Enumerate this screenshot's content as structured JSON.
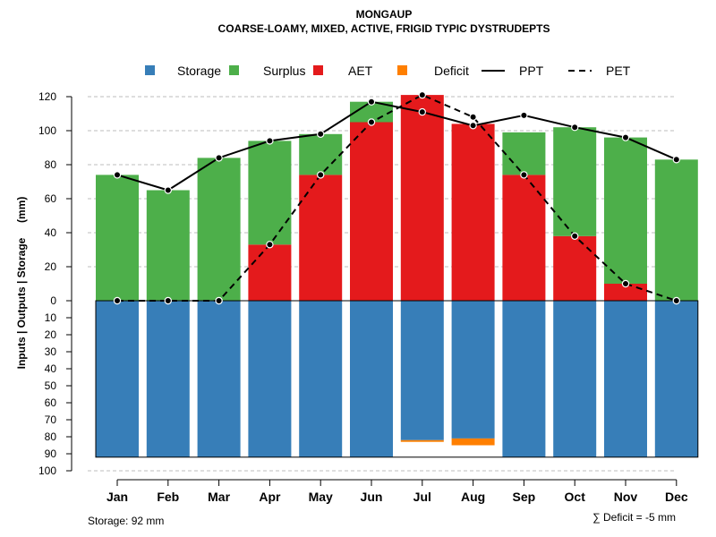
{
  "chart_data": {
    "type": "bar",
    "title": "MONGAUP",
    "subtitle": "COARSE-LOAMY, MIXED, ACTIVE, FRIGID TYPIC DYSTRUDEPTS",
    "ylabel": "Inputs | Outputs | Storage     (mm)",
    "categories": [
      "Jan",
      "Feb",
      "Mar",
      "Apr",
      "May",
      "Jun",
      "Jul",
      "Aug",
      "Sep",
      "Oct",
      "Nov",
      "Dec"
    ],
    "upper_ylim": [
      0,
      120
    ],
    "upper_ticks": [
      0,
      20,
      40,
      60,
      80,
      100,
      120
    ],
    "lower_ylim": [
      0,
      100
    ],
    "lower_ticks": [
      0,
      10,
      20,
      30,
      40,
      50,
      60,
      70,
      80,
      90,
      100
    ],
    "colors": {
      "Storage": "#377eb8",
      "Surplus": "#4daf4a",
      "AET": "#e41a1c",
      "Deficit": "#ff7f00",
      "grid": "#bdbdbd"
    },
    "legend": [
      {
        "name": "Storage",
        "style": "box"
      },
      {
        "name": "Surplus",
        "style": "box"
      },
      {
        "name": "AET",
        "style": "box"
      },
      {
        "name": "Deficit",
        "style": "box"
      },
      {
        "name": "PPT",
        "style": "solid-line"
      },
      {
        "name": "PET",
        "style": "dashed-line"
      }
    ],
    "series": [
      {
        "name": "AET",
        "values": [
          0,
          0,
          0,
          33,
          74,
          105,
          121,
          104,
          74,
          38,
          10,
          0
        ]
      },
      {
        "name": "Surplus",
        "values": [
          74,
          65,
          84,
          61,
          24,
          12,
          0,
          0,
          25,
          64,
          86,
          83
        ]
      },
      {
        "name": "Storage",
        "values": [
          92,
          92,
          92,
          92,
          92,
          92,
          82,
          81,
          92,
          92,
          92,
          92
        ]
      },
      {
        "name": "Deficit",
        "values": [
          0,
          0,
          0,
          0,
          0,
          0,
          1,
          4,
          0,
          0,
          0,
          0
        ]
      },
      {
        "name": "PPT",
        "values": [
          74,
          65,
          84,
          94,
          98,
          117,
          111,
          103,
          109,
          102,
          96,
          83
        ]
      },
      {
        "name": "PET",
        "values": [
          0,
          0,
          0,
          33,
          74,
          105,
          121,
          108,
          74,
          38,
          10,
          0
        ]
      }
    ],
    "storage_capacity": 92,
    "storage_note": "Storage: 92 mm",
    "deficit_note": "∑ Deficit = -5 mm"
  }
}
